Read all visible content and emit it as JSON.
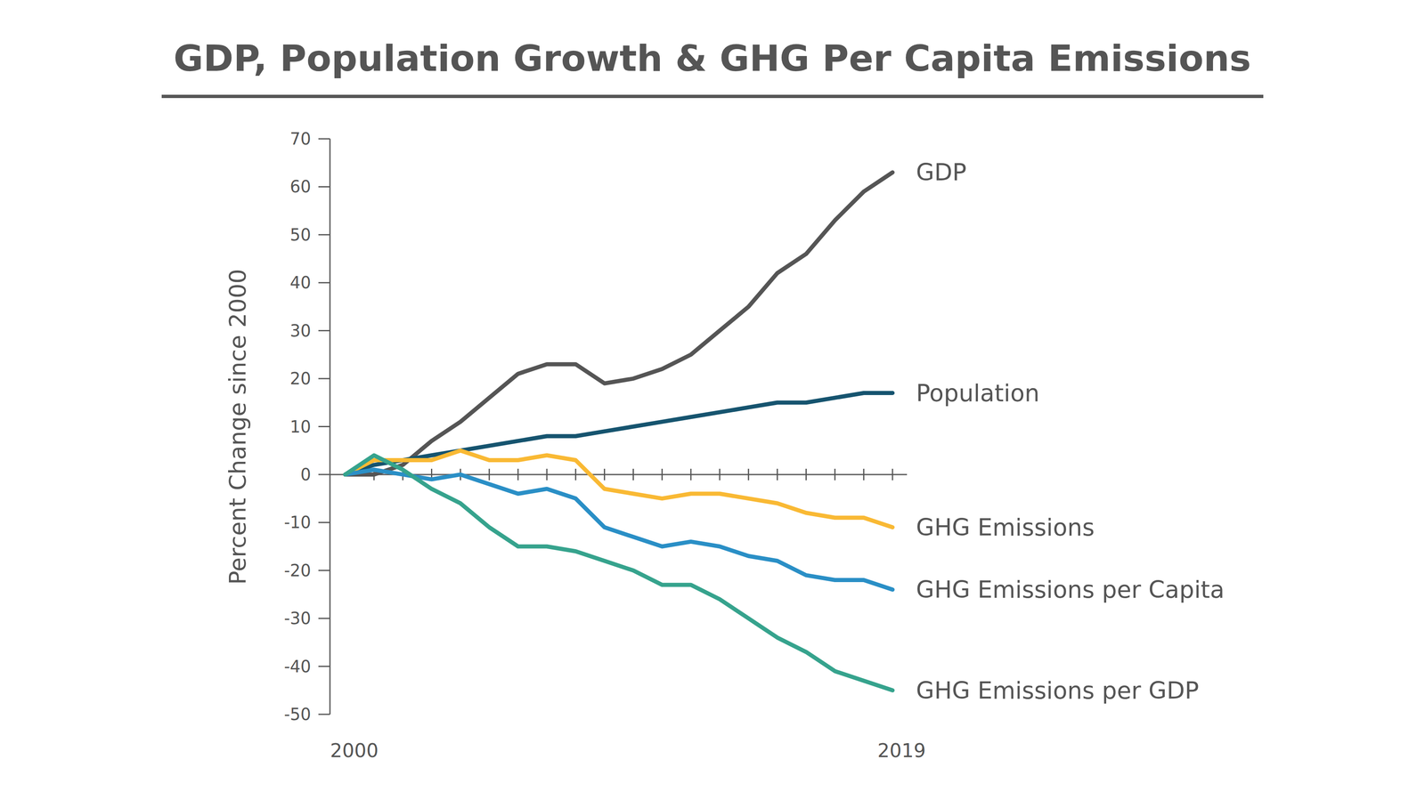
{
  "chart_data": {
    "type": "line",
    "title": "GDP, Population Growth & GHG Per Capita Emissions",
    "y_label": "Percent Change since 2000",
    "categories": [
      "2000",
      null,
      null,
      null,
      null,
      null,
      null,
      null,
      null,
      null,
      null,
      null,
      null,
      null,
      null,
      null,
      null,
      null,
      null,
      "2019"
    ],
    "series": [
      {
        "name": "GDP",
        "color": "#555555",
        "values": [
          0,
          0,
          2,
          7,
          11,
          16,
          21,
          23,
          23,
          19,
          20,
          22,
          25,
          30,
          35,
          42,
          46,
          53,
          59,
          63
        ]
      },
      {
        "name": "Population",
        "color": "#16546f",
        "values": [
          0,
          2,
          3,
          4,
          5,
          6,
          7,
          8,
          8,
          9,
          10,
          11,
          12,
          13,
          14,
          15,
          15,
          16,
          17,
          17
        ]
      },
      {
        "name": "GHG Emissions",
        "color": "#f9b934",
        "values": [
          0,
          3,
          3,
          3,
          5,
          3,
          3,
          4,
          3,
          -3,
          -4,
          -5,
          -4,
          -4,
          -5,
          -6,
          -8,
          -9,
          -9,
          -11
        ]
      },
      {
        "name": "GHG Emissions per Capita",
        "color": "#2a8fc6",
        "values": [
          0,
          1,
          0,
          -1,
          0,
          -2,
          -4,
          -3,
          -5,
          -11,
          -13,
          -15,
          -14,
          -15,
          -17,
          -18,
          -21,
          -22,
          -22,
          -24
        ]
      },
      {
        "name": "GHG Emissions per GDP",
        "color": "#36a38d",
        "values": [
          0,
          4,
          1,
          -3,
          -6,
          -11,
          -15,
          -15,
          -16,
          -18,
          -20,
          -23,
          -23,
          -26,
          -30,
          -34,
          -37,
          -41,
          -43,
          -45
        ]
      }
    ],
    "ylim": [
      -50,
      70
    ],
    "yticks": [
      -50,
      -40,
      -30,
      -20,
      -10,
      0,
      10,
      20,
      30,
      40,
      50,
      60,
      70
    ]
  }
}
